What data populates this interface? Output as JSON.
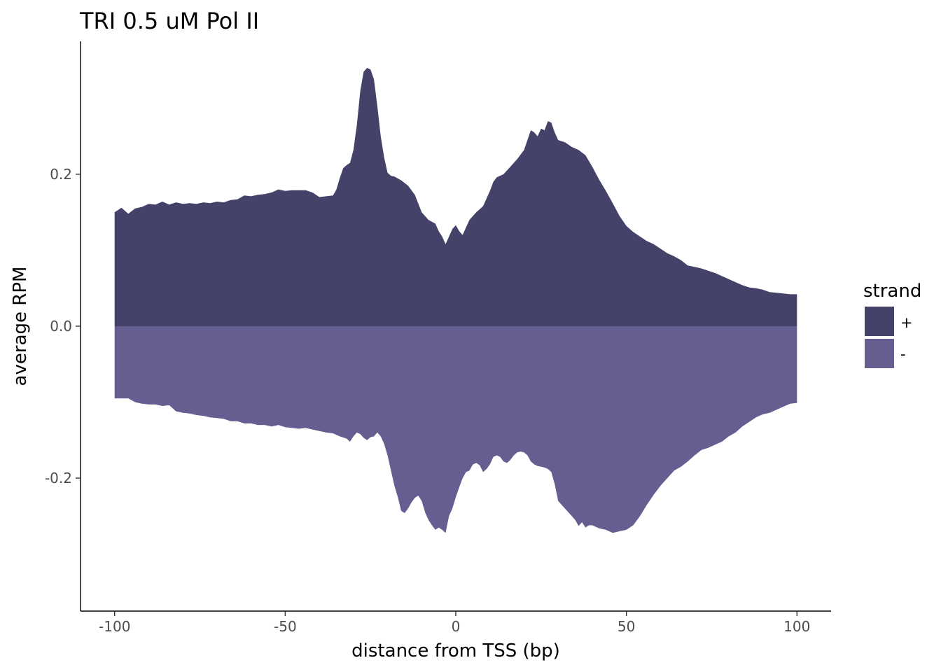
{
  "chart_data": {
    "type": "area",
    "title": "TRI 0.5 uM Pol II",
    "xlabel": "distance from TSS (bp)",
    "ylabel": "average RPM",
    "xlim": [
      -110,
      110
    ],
    "ylim": [
      -0.375,
      0.375
    ],
    "x_ticks": [
      -100,
      -50,
      0,
      50,
      100
    ],
    "x_tick_labels": [
      "-100",
      "-50",
      "0",
      "50",
      "100"
    ],
    "y_ticks": [
      -0.2,
      0.0,
      0.2
    ],
    "y_tick_labels": [
      "-0.2",
      "0.0",
      "0.2"
    ],
    "grid": false,
    "legend": {
      "title": "strand",
      "position": "right"
    },
    "series": [
      {
        "name": "+",
        "color": "#45426a",
        "points": [
          [
            -100,
            0.15
          ],
          [
            -98,
            0.156
          ],
          [
            -96,
            0.148
          ],
          [
            -94,
            0.155
          ],
          [
            -92,
            0.157
          ],
          [
            -90,
            0.161
          ],
          [
            -88,
            0.16
          ],
          [
            -86,
            0.164
          ],
          [
            -84,
            0.16
          ],
          [
            -82,
            0.163
          ],
          [
            -80,
            0.161
          ],
          [
            -78,
            0.162
          ],
          [
            -76,
            0.161
          ],
          [
            -74,
            0.163
          ],
          [
            -72,
            0.162
          ],
          [
            -70,
            0.164
          ],
          [
            -68,
            0.163
          ],
          [
            -66,
            0.166
          ],
          [
            -64,
            0.167
          ],
          [
            -62,
            0.172
          ],
          [
            -60,
            0.171
          ],
          [
            -58,
            0.173
          ],
          [
            -56,
            0.174
          ],
          [
            -54,
            0.176
          ],
          [
            -52,
            0.18
          ],
          [
            -50,
            0.178
          ],
          [
            -48,
            0.179
          ],
          [
            -46,
            0.179
          ],
          [
            -44,
            0.179
          ],
          [
            -42,
            0.176
          ],
          [
            -40,
            0.17
          ],
          [
            -38,
            0.171
          ],
          [
            -36,
            0.172
          ],
          [
            -35,
            0.18
          ],
          [
            -34,
            0.195
          ],
          [
            -33,
            0.208
          ],
          [
            -32,
            0.212
          ],
          [
            -31,
            0.215
          ],
          [
            -30,
            0.232
          ],
          [
            -29,
            0.265
          ],
          [
            -28,
            0.31
          ],
          [
            -27,
            0.335
          ],
          [
            -26,
            0.34
          ],
          [
            -25,
            0.338
          ],
          [
            -24,
            0.325
          ],
          [
            -23,
            0.29
          ],
          [
            -22,
            0.25
          ],
          [
            -21,
            0.222
          ],
          [
            -20,
            0.202
          ],
          [
            -19,
            0.198
          ],
          [
            -18,
            0.197
          ],
          [
            -16,
            0.192
          ],
          [
            -14,
            0.185
          ],
          [
            -12,
            0.173
          ],
          [
            -10,
            0.15
          ],
          [
            -8,
            0.14
          ],
          [
            -6,
            0.135
          ],
          [
            -5,
            0.125
          ],
          [
            -4,
            0.118
          ],
          [
            -3,
            0.108
          ],
          [
            -2,
            0.118
          ],
          [
            -1,
            0.128
          ],
          [
            0,
            0.133
          ],
          [
            1,
            0.125
          ],
          [
            2,
            0.12
          ],
          [
            3,
            0.13
          ],
          [
            4,
            0.14
          ],
          [
            6,
            0.15
          ],
          [
            8,
            0.158
          ],
          [
            10,
            0.178
          ],
          [
            11,
            0.19
          ],
          [
            12,
            0.196
          ],
          [
            14,
            0.2
          ],
          [
            16,
            0.21
          ],
          [
            18,
            0.22
          ],
          [
            20,
            0.232
          ],
          [
            21,
            0.245
          ],
          [
            22,
            0.258
          ],
          [
            23,
            0.255
          ],
          [
            24,
            0.25
          ],
          [
            25,
            0.26
          ],
          [
            26,
            0.258
          ],
          [
            27,
            0.27
          ],
          [
            28,
            0.268
          ],
          [
            29,
            0.255
          ],
          [
            30,
            0.245
          ],
          [
            32,
            0.242
          ],
          [
            34,
            0.236
          ],
          [
            36,
            0.232
          ],
          [
            38,
            0.225
          ],
          [
            40,
            0.21
          ],
          [
            42,
            0.193
          ],
          [
            44,
            0.178
          ],
          [
            46,
            0.162
          ],
          [
            48,
            0.145
          ],
          [
            50,
            0.132
          ],
          [
            52,
            0.124
          ],
          [
            54,
            0.118
          ],
          [
            56,
            0.112
          ],
          [
            58,
            0.108
          ],
          [
            60,
            0.102
          ],
          [
            62,
            0.096
          ],
          [
            64,
            0.092
          ],
          [
            66,
            0.087
          ],
          [
            68,
            0.08
          ],
          [
            70,
            0.078
          ],
          [
            72,
            0.076
          ],
          [
            74,
            0.073
          ],
          [
            76,
            0.07
          ],
          [
            78,
            0.066
          ],
          [
            80,
            0.062
          ],
          [
            82,
            0.058
          ],
          [
            84,
            0.054
          ],
          [
            86,
            0.051
          ],
          [
            88,
            0.05
          ],
          [
            90,
            0.048
          ],
          [
            92,
            0.045
          ],
          [
            94,
            0.044
          ],
          [
            96,
            0.043
          ],
          [
            98,
            0.042
          ],
          [
            100,
            0.042
          ]
        ]
      },
      {
        "name": "-",
        "color": "#655e90",
        "points": [
          [
            -100,
            -0.095
          ],
          [
            -98,
            -0.095
          ],
          [
            -96,
            -0.095
          ],
          [
            -94,
            -0.1
          ],
          [
            -92,
            -0.102
          ],
          [
            -90,
            -0.103
          ],
          [
            -88,
            -0.103
          ],
          [
            -86,
            -0.105
          ],
          [
            -84,
            -0.104
          ],
          [
            -82,
            -0.112
          ],
          [
            -80,
            -0.114
          ],
          [
            -78,
            -0.115
          ],
          [
            -76,
            -0.117
          ],
          [
            -74,
            -0.118
          ],
          [
            -72,
            -0.12
          ],
          [
            -70,
            -0.121
          ],
          [
            -68,
            -0.122
          ],
          [
            -66,
            -0.125
          ],
          [
            -64,
            -0.125
          ],
          [
            -62,
            -0.128
          ],
          [
            -60,
            -0.128
          ],
          [
            -58,
            -0.13
          ],
          [
            -56,
            -0.13
          ],
          [
            -54,
            -0.132
          ],
          [
            -52,
            -0.13
          ],
          [
            -50,
            -0.133
          ],
          [
            -48,
            -0.134
          ],
          [
            -46,
            -0.135
          ],
          [
            -44,
            -0.134
          ],
          [
            -42,
            -0.136
          ],
          [
            -40,
            -0.138
          ],
          [
            -38,
            -0.14
          ],
          [
            -36,
            -0.141
          ],
          [
            -34,
            -0.145
          ],
          [
            -32,
            -0.148
          ],
          [
            -31,
            -0.152
          ],
          [
            -30,
            -0.145
          ],
          [
            -29,
            -0.14
          ],
          [
            -28,
            -0.142
          ],
          [
            -27,
            -0.147
          ],
          [
            -26,
            -0.15
          ],
          [
            -25,
            -0.146
          ],
          [
            -24,
            -0.145
          ],
          [
            -23,
            -0.14
          ],
          [
            -22,
            -0.145
          ],
          [
            -21,
            -0.155
          ],
          [
            -20,
            -0.17
          ],
          [
            -19,
            -0.19
          ],
          [
            -18,
            -0.21
          ],
          [
            -17,
            -0.225
          ],
          [
            -16,
            -0.243
          ],
          [
            -15,
            -0.246
          ],
          [
            -14,
            -0.24
          ],
          [
            -13,
            -0.232
          ],
          [
            -12,
            -0.226
          ],
          [
            -11,
            -0.223
          ],
          [
            -10,
            -0.23
          ],
          [
            -9,
            -0.245
          ],
          [
            -8,
            -0.255
          ],
          [
            -7,
            -0.262
          ],
          [
            -6,
            -0.268
          ],
          [
            -5,
            -0.265
          ],
          [
            -4,
            -0.268
          ],
          [
            -3,
            -0.272
          ],
          [
            -2,
            -0.25
          ],
          [
            -1,
            -0.24
          ],
          [
            0,
            -0.225
          ],
          [
            1,
            -0.212
          ],
          [
            2,
            -0.2
          ],
          [
            3,
            -0.192
          ],
          [
            4,
            -0.19
          ],
          [
            5,
            -0.182
          ],
          [
            6,
            -0.18
          ],
          [
            7,
            -0.183
          ],
          [
            8,
            -0.192
          ],
          [
            9,
            -0.188
          ],
          [
            10,
            -0.182
          ],
          [
            11,
            -0.172
          ],
          [
            12,
            -0.17
          ],
          [
            13,
            -0.172
          ],
          [
            14,
            -0.178
          ],
          [
            15,
            -0.18
          ],
          [
            16,
            -0.176
          ],
          [
            17,
            -0.17
          ],
          [
            18,
            -0.166
          ],
          [
            19,
            -0.165
          ],
          [
            20,
            -0.166
          ],
          [
            21,
            -0.17
          ],
          [
            22,
            -0.178
          ],
          [
            23,
            -0.182
          ],
          [
            24,
            -0.184
          ],
          [
            25,
            -0.185
          ],
          [
            26,
            -0.186
          ],
          [
            27,
            -0.188
          ],
          [
            28,
            -0.192
          ],
          [
            29,
            -0.208
          ],
          [
            30,
            -0.23
          ],
          [
            31,
            -0.235
          ],
          [
            32,
            -0.24
          ],
          [
            33,
            -0.245
          ],
          [
            34,
            -0.25
          ],
          [
            35,
            -0.255
          ],
          [
            36,
            -0.263
          ],
          [
            37,
            -0.258
          ],
          [
            38,
            -0.265
          ],
          [
            39,
            -0.262
          ],
          [
            40,
            -0.262
          ],
          [
            42,
            -0.266
          ],
          [
            44,
            -0.268
          ],
          [
            46,
            -0.272
          ],
          [
            48,
            -0.27
          ],
          [
            50,
            -0.268
          ],
          [
            52,
            -0.262
          ],
          [
            54,
            -0.25
          ],
          [
            56,
            -0.235
          ],
          [
            58,
            -0.222
          ],
          [
            60,
            -0.21
          ],
          [
            62,
            -0.2
          ],
          [
            64,
            -0.19
          ],
          [
            66,
            -0.185
          ],
          [
            68,
            -0.178
          ],
          [
            70,
            -0.17
          ],
          [
            72,
            -0.163
          ],
          [
            74,
            -0.16
          ],
          [
            76,
            -0.156
          ],
          [
            78,
            -0.152
          ],
          [
            80,
            -0.145
          ],
          [
            82,
            -0.14
          ],
          [
            84,
            -0.132
          ],
          [
            86,
            -0.126
          ],
          [
            88,
            -0.12
          ],
          [
            90,
            -0.116
          ],
          [
            92,
            -0.114
          ],
          [
            94,
            -0.11
          ],
          [
            96,
            -0.106
          ],
          [
            98,
            -0.102
          ],
          [
            100,
            -0.101
          ]
        ]
      }
    ]
  }
}
